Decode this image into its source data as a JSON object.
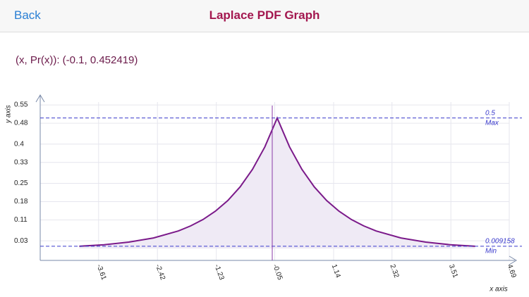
{
  "header": {
    "back": "Back",
    "title": "Laplace PDF Graph"
  },
  "readout": "(x, Pr(x)): (-0.1, 0.452419)",
  "chart_data": {
    "type": "area",
    "x_label": "x axis",
    "y_label": "y axis",
    "x": [
      -4,
      -3.5,
      -3,
      -2.5,
      -2,
      -1.75,
      -1.5,
      -1.25,
      -1,
      -0.75,
      -0.5,
      -0.25,
      0,
      0.25,
      0.5,
      0.75,
      1,
      1.25,
      1.5,
      1.75,
      2,
      2.5,
      3,
      3.5,
      4
    ],
    "values": [
      0.0092,
      0.0151,
      0.0249,
      0.041,
      0.0677,
      0.0869,
      0.1116,
      0.1433,
      0.1839,
      0.2362,
      0.3033,
      0.3894,
      0.5,
      0.3894,
      0.3033,
      0.2362,
      0.1839,
      0.1433,
      0.1116,
      0.0869,
      0.0677,
      0.041,
      0.0249,
      0.0151,
      0.0092
    ],
    "color": "#7b1a8a",
    "xlim": [
      -4.79,
      4.69
    ],
    "ylim": [
      -0.045,
      0.588
    ],
    "xticks": [
      -3.61,
      -2.42,
      -1.23,
      -0.05,
      1.14,
      2.32,
      3.51,
      4.69
    ],
    "yticks": [
      0.03,
      0.11,
      0.18,
      0.25,
      0.33,
      0.4,
      0.48,
      0.55
    ],
    "grid": true,
    "max": {
      "value": 0.5,
      "label": "Max"
    },
    "min": {
      "value": 0.009158,
      "label": "Min"
    },
    "cursor_x": -0.1
  }
}
